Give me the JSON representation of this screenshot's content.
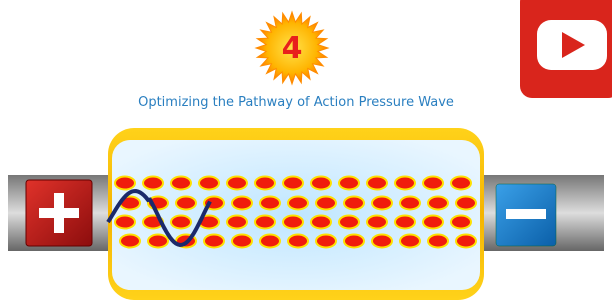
{
  "badge": "4",
  "title": "Optimizing the Pathway of Action Pressure Wave"
}
